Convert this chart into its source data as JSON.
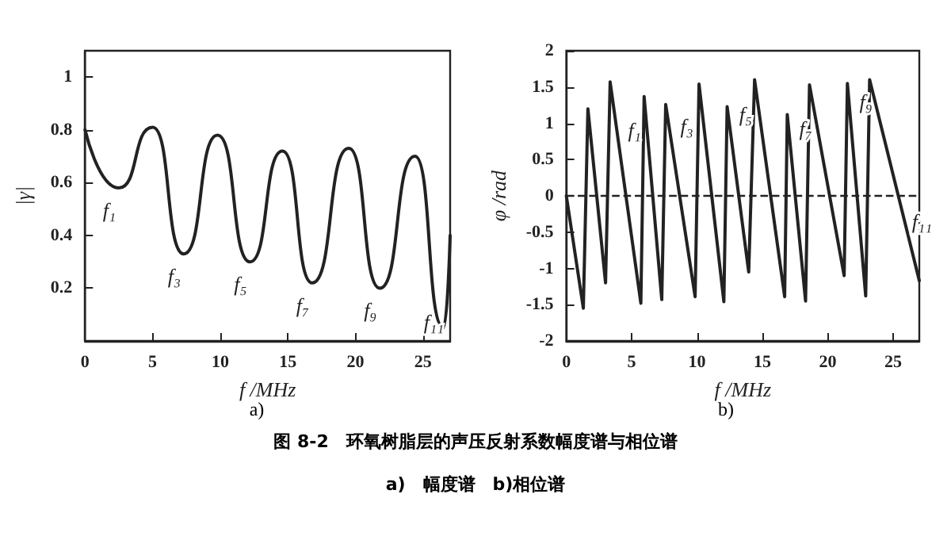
{
  "chart_data": [
    {
      "type": "line",
      "title": "图 8-2　环氧树脂层的声压反射系数幅度谱与相位谱",
      "subtitle": "a)　幅度谱　b)相位谱",
      "xlabel": "f /MHz",
      "ylabel": "|γ|",
      "x": [
        0,
        2.5,
        5,
        7.3,
        9.8,
        12.2,
        14.6,
        16.8,
        19.5,
        21.8,
        24.4,
        26.5,
        27
      ],
      "series": [
        {
          "color": "#222222",
          "values": [
            0.8,
            0.58,
            0.81,
            0.33,
            0.78,
            0.3,
            0.72,
            0.22,
            0.73,
            0.2,
            0.7,
            0.05,
            0.4
          ]
        }
      ],
      "xlim": [
        0,
        27
      ],
      "ylim": [
        0,
        1.1
      ],
      "xticks": [
        0,
        5,
        10,
        15,
        20,
        25
      ],
      "yticks": [
        0.2,
        0.4,
        0.6,
        0.8,
        1.0
      ],
      "marker": "none",
      "line_style": "solid",
      "grid": false,
      "annotations": [
        {
          "text": "f₁",
          "x": 2.5,
          "y": 0.58
        },
        {
          "text": "f₃",
          "x": 7.3,
          "y": 0.33
        },
        {
          "text": "f₅",
          "x": 12.2,
          "y": 0.3
        },
        {
          "text": "f₇",
          "x": 16.8,
          "y": 0.22
        },
        {
          "text": "f₉",
          "x": 21.8,
          "y": 0.2
        },
        {
          "text": "f₁₁",
          "x": 26.5,
          "y": 0.05
        },
        "a)"
      ]
    },
    {
      "type": "line",
      "xlabel": "f /MHz",
      "ylabel": "φ /rad",
      "x": [
        0,
        1.3,
        1.65,
        3.0,
        3.35,
        5.7,
        5.95,
        7.3,
        7.6,
        9.85,
        10.15,
        12.05,
        12.3,
        13.95,
        14.4,
        16.7,
        16.9,
        18.3,
        18.6,
        21.25,
        21.5,
        22.9,
        23.2,
        27
      ],
      "series": [
        {
          "color": "#222222",
          "values": [
            0,
            -1.55,
            1.2,
            -1.2,
            1.57,
            -1.48,
            1.37,
            -1.43,
            1.26,
            -1.39,
            1.54,
            -1.46,
            1.23,
            -1.05,
            1.6,
            -1.39,
            1.12,
            -1.45,
            1.53,
            -1.1,
            1.55,
            -1.38,
            1.6,
            -1.17
          ]
        }
      ],
      "xlim": [
        0,
        27
      ],
      "ylim": [
        -2,
        2
      ],
      "xticks": [
        0,
        5,
        10,
        15,
        20,
        25
      ],
      "yticks": [
        -2,
        -1.5,
        -1,
        -0.5,
        0,
        0.5,
        1,
        1.5,
        2
      ],
      "marker": "none",
      "line_style": "solid",
      "grid": false,
      "ref_lines": [
        {
          "axis": "y",
          "value": 0,
          "color": "#222222",
          "line_style": "dashed"
        }
      ],
      "annotations": [
        {
          "text": "f₁",
          "x": 4,
          "y": 0.73
        },
        {
          "text": "f₃",
          "x": 8,
          "y": 0.79
        },
        {
          "text": "f₅",
          "x": 12.5,
          "y": 0.95
        },
        {
          "text": "f₇",
          "x": 17.1,
          "y": 0.75
        },
        {
          "text": "f₉",
          "x": 21.7,
          "y": 1.13
        },
        {
          "text": "f₁₁",
          "x": 26,
          "y": -0.52
        },
        "b)"
      ]
    }
  ]
}
